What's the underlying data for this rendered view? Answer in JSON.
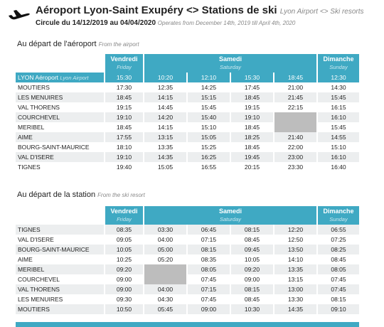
{
  "header": {
    "title": "Aéroport Lyon-Saint Exupéry <> Stations de ski",
    "title_en": "Lyon Airport <> Ski resorts",
    "subtitle": "Circule du 14/12/2019 au 04/04/2020",
    "subtitle_en": "Operates from December 14th, 2019 till April 4th, 2020"
  },
  "sections": [
    {
      "heading": "Au départ de l'aéroport",
      "heading_en": "From the airport",
      "days": [
        {
          "day": "Vendredi",
          "day_en": "Friday"
        },
        {
          "day": "Samedi",
          "day_en": "Saturday"
        },
        {
          "day": "Dimanche",
          "day_en": "Sunday"
        }
      ],
      "rows": [
        {
          "stop": "LYON Aéroport",
          "stop_en": "Lyon Airport",
          "times": [
            "15:30",
            "10:20",
            "12:10",
            "15:30",
            "18:45",
            "12:30"
          ]
        },
        {
          "stop": "MOUTIERS",
          "times": [
            "17:30",
            "12:35",
            "14:25",
            "17:45",
            "21:00",
            "14:30"
          ]
        },
        {
          "stop": "LES MENUIRES",
          "times": [
            "18:45",
            "14:15",
            "15:15",
            "18:45",
            "21:45",
            "15:45"
          ]
        },
        {
          "stop": "VAL THORENS",
          "times": [
            "19:15",
            "14:45",
            "15:45",
            "19:15",
            "22:15",
            "16:15"
          ]
        },
        {
          "stop": "COURCHEVEL",
          "times": [
            "19:10",
            "14:20",
            "15:40",
            "19:10",
            null,
            "16:10"
          ]
        },
        {
          "stop": "MERIBEL",
          "times": [
            "18:45",
            "14:15",
            "15:10",
            "18:45",
            null,
            "15:45"
          ]
        },
        {
          "stop": "AIME",
          "times": [
            "17:55",
            "13:15",
            "15:05",
            "18:25",
            "21:40",
            "14:55"
          ]
        },
        {
          "stop": "BOURG-SAINT-MAURICE",
          "times": [
            "18:10",
            "13:35",
            "15:25",
            "18:45",
            "22:00",
            "15:10"
          ]
        },
        {
          "stop": "VAL D'ISERE",
          "times": [
            "19:10",
            "14:35",
            "16:25",
            "19:45",
            "23:00",
            "16:10"
          ]
        },
        {
          "stop": "TIGNES",
          "times": [
            "19:40",
            "15:05",
            "16:55",
            "20:15",
            "23:30",
            "16:40"
          ]
        }
      ]
    },
    {
      "heading": "Au départ de la station",
      "heading_en": "From the ski resort",
      "days": [
        {
          "day": "Vendredi",
          "day_en": "Friday"
        },
        {
          "day": "Samedi",
          "day_en": "Saturday"
        },
        {
          "day": "Dimanche",
          "day_en": "Sunday"
        }
      ],
      "rows": [
        {
          "stop": "TIGNES",
          "times": [
            "08:35",
            "03:30",
            "06:45",
            "08:15",
            "12:20",
            "06:55"
          ]
        },
        {
          "stop": "VAL D'ISERE",
          "times": [
            "09:05",
            "04:00",
            "07:15",
            "08:45",
            "12:50",
            "07:25"
          ]
        },
        {
          "stop": "BOURG-SAINT-MAURICE",
          "times": [
            "10:05",
            "05:00",
            "08:15",
            "09:45",
            "13:50",
            "08:25"
          ]
        },
        {
          "stop": "AIME",
          "times": [
            "10:25",
            "05:20",
            "08:35",
            "10:05",
            "14:10",
            "08:45"
          ]
        },
        {
          "stop": "MERIBEL",
          "times": [
            "09:20",
            null,
            "08:05",
            "09:20",
            "13:35",
            "08:05"
          ]
        },
        {
          "stop": "COURCHEVEL",
          "times": [
            "09:00",
            null,
            "07:45",
            "09:00",
            "13:15",
            "07:45"
          ]
        },
        {
          "stop": "VAL THORENS",
          "times": [
            "09:00",
            "04:00",
            "07:15",
            "08:15",
            "13:00",
            "07:45"
          ]
        },
        {
          "stop": "LES MENUIRES",
          "times": [
            "09:30",
            "04:30",
            "07:45",
            "08:45",
            "13:30",
            "08:15"
          ]
        },
        {
          "stop": "MOUTIERS",
          "times": [
            "10:50",
            "05:45",
            "09:00",
            "10:30",
            "14:35",
            "09:10"
          ]
        }
      ]
    }
  ]
}
